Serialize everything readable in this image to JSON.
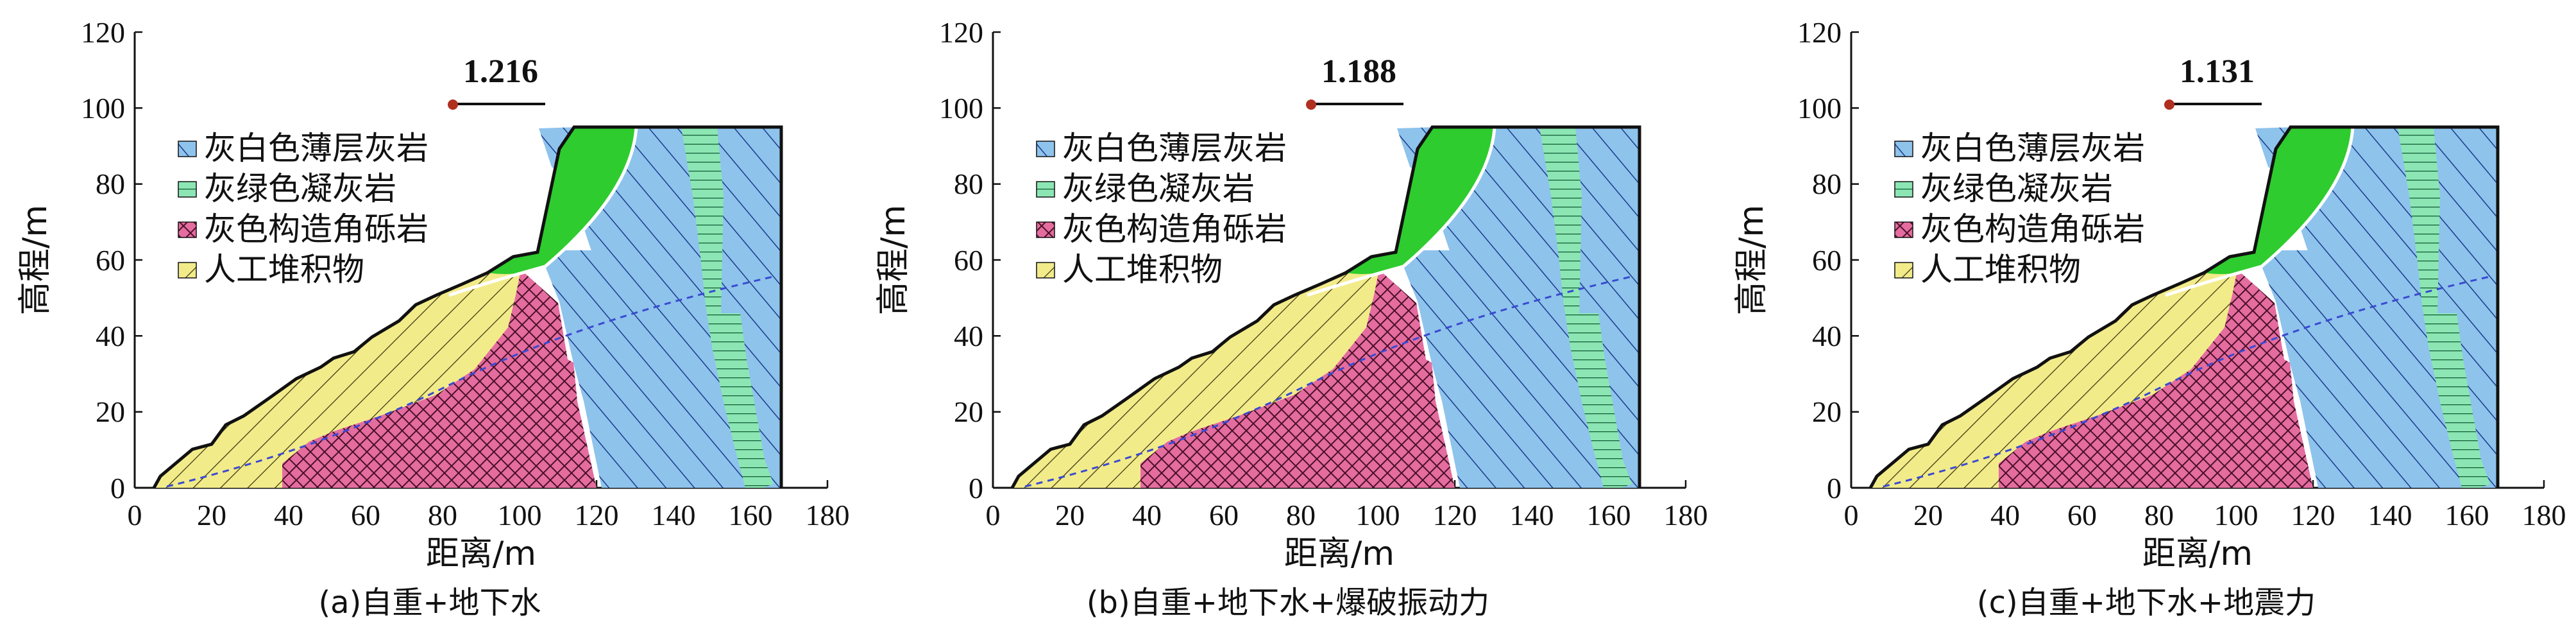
{
  "axis": {
    "x_ticks": [
      "0",
      "20",
      "40",
      "60",
      "80",
      "100",
      "120",
      "140",
      "160",
      "180"
    ],
    "y_ticks": [
      "0",
      "20",
      "40",
      "60",
      "80",
      "100",
      "120"
    ],
    "x_label": "距离/m",
    "y_label": "高程/m",
    "xlim": [
      0,
      180
    ],
    "ylim": [
      0,
      120
    ]
  },
  "legend": [
    {
      "label": "灰白色薄层灰岩",
      "color": "#8EC3EC"
    },
    {
      "label": "灰绿色凝灰岩",
      "color": "#8CE6B4"
    },
    {
      "label": "灰色构造角砾岩",
      "color": "#E46C9F"
    },
    {
      "label": "人工堆积物",
      "color": "#F2EB8A"
    }
  ],
  "colors": {
    "slip_zone": "#2ECC2E",
    "slip_point": "#B03020",
    "outline": "#111111"
  },
  "panels": [
    {
      "caption": "(a)自重+地下水",
      "factor": "1.216"
    },
    {
      "caption": "(b)自重+地下水+爆破振动力",
      "factor": "1.188"
    },
    {
      "caption": "(c)自重+地下水+地震力",
      "factor": "1.131"
    }
  ],
  "chart_data": {
    "type": "diagram",
    "slip_circle_center": [
      82,
      101
    ],
    "profile": [
      [
        5,
        0
      ],
      [
        20,
        10
      ],
      [
        48,
        32
      ],
      [
        64,
        42
      ],
      [
        97,
        60
      ],
      [
        104,
        62
      ],
      [
        107,
        68
      ],
      [
        117,
        95
      ],
      [
        168,
        95
      ],
      [
        168,
        0
      ]
    ]
  }
}
